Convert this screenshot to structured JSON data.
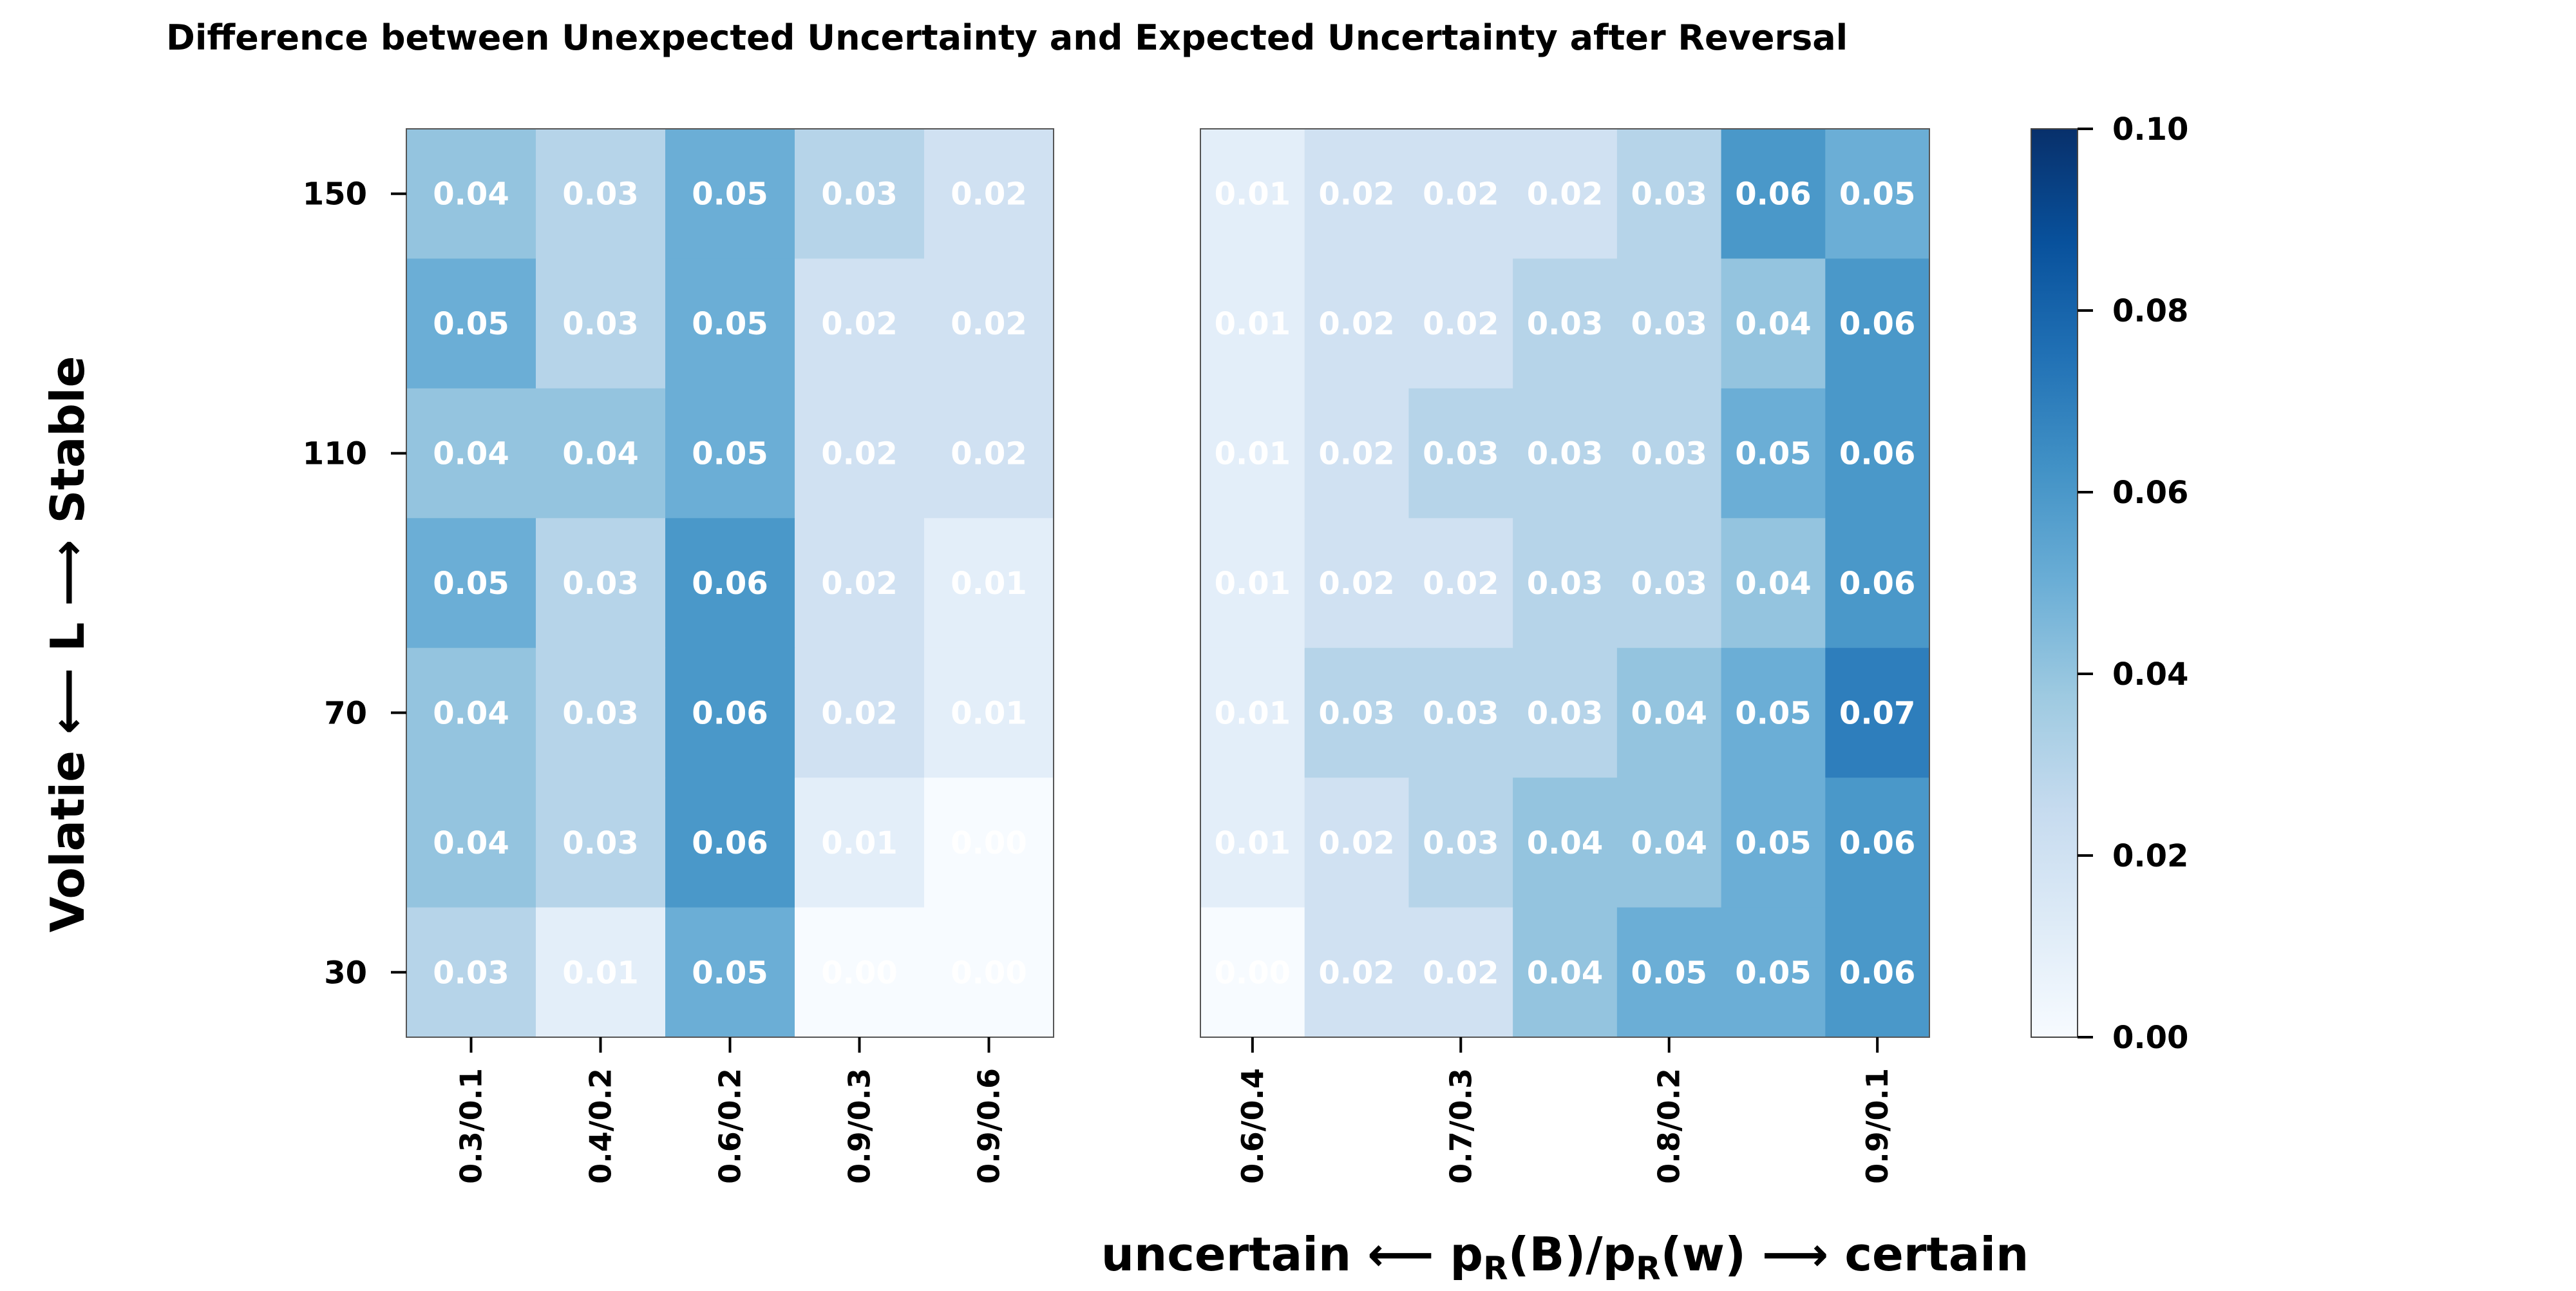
{
  "chart_data": {
    "type": "heatmap",
    "title": "Difference between Unexpected Uncertainty and Expected Uncertainty after Reversal",
    "ylabel": "Volatie ⟵ L ⟶ Stable",
    "xlabel": {
      "left": "uncertain ⟵ p",
      "sub1": "R",
      "mid1": "(B)/p",
      "sub2": "R",
      "mid2": "(w) ⟶ certain"
    },
    "y_ticks": [
      "150",
      "110",
      "70",
      "30"
    ],
    "colorbar": {
      "min": 0,
      "max": 0.1,
      "ticks": [
        "0.00",
        "0.02",
        "0.04",
        "0.06",
        "0.08",
        "0.10"
      ],
      "colormap": "Blues"
    },
    "panels": [
      {
        "x_ticks": [
          "0.3/0.1",
          "0.4/0.2",
          "0.6/0.2",
          "0.9/0.3",
          "0.9/0.6"
        ],
        "values": [
          [
            0.04,
            0.03,
            0.05,
            0.03,
            0.02
          ],
          [
            0.05,
            0.03,
            0.05,
            0.02,
            0.02
          ],
          [
            0.04,
            0.04,
            0.05,
            0.02,
            0.02
          ],
          [
            0.05,
            0.03,
            0.06,
            0.02,
            0.01
          ],
          [
            0.04,
            0.03,
            0.06,
            0.02,
            0.01
          ],
          [
            0.04,
            0.03,
            0.06,
            0.01,
            0.0
          ],
          [
            0.03,
            0.01,
            0.05,
            0.0,
            0.0
          ]
        ],
        "labels": [
          [
            "0.04",
            "0.03",
            "0.05",
            "0.03",
            "0.02"
          ],
          [
            "0.05",
            "0.03",
            "0.05",
            "0.02",
            "0.02"
          ],
          [
            "0.04",
            "0.04",
            "0.05",
            "0.02",
            "0.02"
          ],
          [
            "0.05",
            "0.03",
            "0.06",
            "0.02",
            "0.01"
          ],
          [
            "0.04",
            "0.03",
            "0.06",
            "0.02",
            "0.01"
          ],
          [
            "0.04",
            "0.03",
            "0.06",
            "0.01",
            "0.00"
          ],
          [
            "0.03",
            "0.01",
            "0.05",
            "0.00",
            "0.00"
          ]
        ]
      },
      {
        "x_ticks": [
          "0.6/0.4",
          "0.7/0.3",
          "0.8/0.2",
          "0.9/0.1"
        ],
        "values": [
          [
            0.01,
            0.02,
            0.02,
            0.02,
            0.03,
            0.06,
            0.05
          ],
          [
            0.01,
            0.02,
            0.02,
            0.03,
            0.03,
            0.04,
            0.06
          ],
          [
            0.01,
            0.02,
            0.03,
            0.03,
            0.03,
            0.05,
            0.06
          ],
          [
            0.01,
            0.02,
            0.02,
            0.03,
            0.03,
            0.04,
            0.06
          ],
          [
            0.01,
            0.03,
            0.03,
            0.03,
            0.04,
            0.05,
            0.07
          ],
          [
            0.01,
            0.02,
            0.03,
            0.04,
            0.04,
            0.05,
            0.06
          ],
          [
            0.0,
            0.02,
            0.02,
            0.04,
            0.05,
            0.05,
            0.06
          ]
        ],
        "labels": [
          [
            "0.01",
            "0.02",
            "0.02",
            "0.02",
            "0.03",
            "0.06",
            "0.05"
          ],
          [
            "0.01",
            "0.02",
            "0.02",
            "0.03",
            "0.03",
            "0.04",
            "0.06"
          ],
          [
            "0.01",
            "0.02",
            "0.03",
            "0.03",
            "0.03",
            "0.05",
            "0.06"
          ],
          [
            "0.01",
            "0.02",
            "0.02",
            "0.03",
            "0.03",
            "0.04",
            "0.06"
          ],
          [
            "0.01",
            "0.03",
            "0.03",
            "0.03",
            "0.04",
            "0.05",
            "0.07"
          ],
          [
            "0.01",
            "0.02",
            "0.03",
            "0.04",
            "0.04",
            "0.05",
            "0.06"
          ],
          [
            "0.00",
            "0.02",
            "0.02",
            "0.04",
            "0.05",
            "0.05",
            "0.06"
          ]
        ]
      }
    ]
  }
}
